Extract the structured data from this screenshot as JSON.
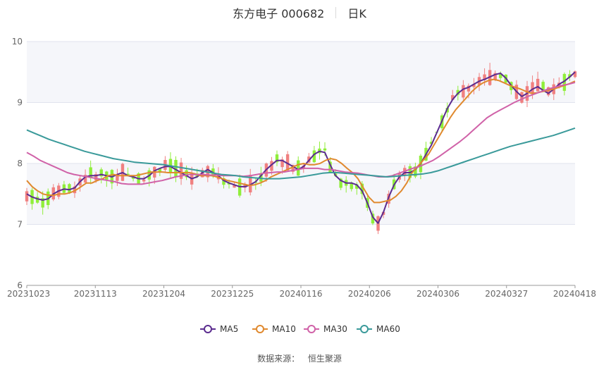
{
  "header": {
    "stock_name": "东方电子 000682",
    "period": "日K"
  },
  "source": {
    "label": "数据来源：",
    "provider": "恒生聚源"
  },
  "chart_data": {
    "type": "candlestick",
    "ylim": [
      6,
      10
    ],
    "y_ticks": [
      "6",
      "7",
      "8",
      "9",
      "10"
    ],
    "x_ticks": [
      "20231023",
      "20231113",
      "20231204",
      "20231225",
      "20240116",
      "20240206",
      "20240306",
      "20240327",
      "20240418"
    ],
    "up_color": "#f08080",
    "down_color": "#90ee3a",
    "ma_series": [
      {
        "name": "MA5",
        "color": "#5b2c8f",
        "values": [
          7.5,
          7.45,
          7.42,
          7.4,
          7.42,
          7.5,
          7.55,
          7.58,
          7.57,
          7.6,
          7.7,
          7.78,
          7.8,
          7.8,
          7.82,
          7.8,
          7.78,
          7.82,
          7.85,
          7.8,
          7.78,
          7.75,
          7.75,
          7.8,
          7.88,
          7.92,
          7.95,
          7.95,
          7.9,
          7.85,
          7.8,
          7.75,
          7.78,
          7.85,
          7.9,
          7.85,
          7.8,
          7.72,
          7.68,
          7.65,
          7.62,
          7.62,
          7.65,
          7.7,
          7.8,
          7.9,
          7.98,
          8.05,
          8.05,
          8.0,
          7.95,
          7.9,
          7.95,
          8.05,
          8.15,
          8.2,
          8.18,
          7.98,
          7.8,
          7.72,
          7.68,
          7.68,
          7.65,
          7.55,
          7.35,
          7.12,
          7.02,
          7.2,
          7.45,
          7.65,
          7.78,
          7.85,
          7.85,
          7.9,
          8.0,
          8.15,
          8.3,
          8.5,
          8.7,
          8.9,
          9.05,
          9.15,
          9.22,
          9.25,
          9.3,
          9.35,
          9.38,
          9.42,
          9.46,
          9.48,
          9.4,
          9.28,
          9.18,
          9.1,
          9.15,
          9.22,
          9.26,
          9.2,
          9.15,
          9.22,
          9.3,
          9.35,
          9.42,
          9.5
        ]
      },
      {
        "name": "MA10",
        "color": "#e0892e",
        "values": [
          7.72,
          7.62,
          7.55,
          7.5,
          7.48,
          7.48,
          7.5,
          7.5,
          7.52,
          7.56,
          7.62,
          7.68,
          7.68,
          7.72,
          7.75,
          7.8,
          7.82,
          7.8,
          7.8,
          7.8,
          7.8,
          7.82,
          7.84,
          7.86,
          7.86,
          7.86,
          7.85,
          7.85,
          7.85,
          7.85,
          7.85,
          7.83,
          7.8,
          7.8,
          7.8,
          7.78,
          7.75,
          7.72,
          7.7,
          7.68,
          7.66,
          7.64,
          7.65,
          7.68,
          7.72,
          7.78,
          7.82,
          7.86,
          7.9,
          7.94,
          7.98,
          8.0,
          7.98,
          7.98,
          8.0,
          8.05,
          8.08,
          8.06,
          8.0,
          7.92,
          7.85,
          7.75,
          7.6,
          7.45,
          7.36,
          7.36,
          7.38,
          7.4,
          7.46,
          7.55,
          7.68,
          7.85,
          7.95,
          8.05,
          8.15,
          8.3,
          8.45,
          8.6,
          8.75,
          8.88,
          8.98,
          9.08,
          9.18,
          9.26,
          9.32,
          9.36,
          9.38,
          9.36,
          9.32,
          9.28,
          9.25,
          9.22,
          9.18,
          9.15,
          9.16,
          9.18,
          9.2,
          9.22,
          9.25,
          9.28,
          9.31,
          9.35
        ]
      },
      {
        "name": "MA30",
        "color": "#d062a8",
        "values": [
          8.18,
          8.12,
          8.05,
          8.0,
          7.95,
          7.9,
          7.85,
          7.82,
          7.8,
          7.78,
          7.76,
          7.74,
          7.72,
          7.7,
          7.67,
          7.66,
          7.66,
          7.66,
          7.68,
          7.7,
          7.72,
          7.75,
          7.78,
          7.8,
          7.82,
          7.82,
          7.82,
          7.81,
          7.81,
          7.8,
          7.8,
          7.8,
          7.79,
          7.8,
          7.82,
          7.84,
          7.85,
          7.86,
          7.86,
          7.88,
          7.9,
          7.92,
          7.92,
          7.92,
          7.9,
          7.9,
          7.88,
          7.86,
          7.85,
          7.84,
          7.82,
          7.8,
          7.78,
          7.78,
          7.8,
          7.84,
          7.88,
          7.92,
          7.95,
          8.0,
          8.05,
          8.12,
          8.2,
          8.28,
          8.36,
          8.45,
          8.55,
          8.65,
          8.75,
          8.82,
          8.88,
          8.94,
          9.0,
          9.05,
          9.1,
          9.14,
          9.18,
          9.22,
          9.25,
          9.28,
          9.3,
          9.33
        ]
      },
      {
        "name": "MA60",
        "color": "#3a9a9a",
        "values": [
          8.55,
          8.5,
          8.45,
          8.4,
          8.36,
          8.32,
          8.28,
          8.24,
          8.2,
          8.17,
          8.14,
          8.11,
          8.08,
          8.06,
          8.04,
          8.02,
          8.01,
          8.0,
          7.99,
          7.98,
          7.96,
          7.94,
          7.92,
          7.9,
          7.88,
          7.86,
          7.84,
          7.82,
          7.81,
          7.8,
          7.78,
          7.77,
          7.76,
          7.75,
          7.75,
          7.75,
          7.76,
          7.77,
          7.78,
          7.8,
          7.82,
          7.84,
          7.85,
          7.85,
          7.84,
          7.83,
          7.82,
          7.81,
          7.8,
          7.79,
          7.78,
          7.79,
          7.8,
          7.81,
          7.82,
          7.83,
          7.85,
          7.88,
          7.92,
          7.96,
          8.0,
          8.04,
          8.08,
          8.12,
          8.16,
          8.2,
          8.24,
          8.28,
          8.31,
          8.34,
          8.37,
          8.4,
          8.43,
          8.46,
          8.5,
          8.54,
          8.58
        ]
      }
    ],
    "legend": [
      "MA5",
      "MA10",
      "MA30",
      "MA60"
    ]
  }
}
